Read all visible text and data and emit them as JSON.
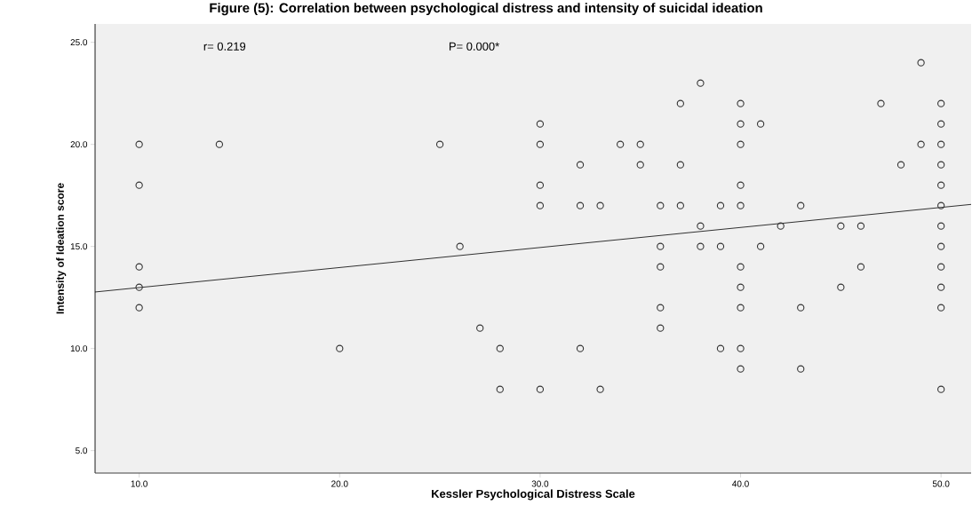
{
  "chart_data": {
    "type": "scatter",
    "title": "Figure (5): Correlation between psychological distress and intensity of suicidal ideation",
    "xlabel": "Kessler Psychological Distress Scale",
    "ylabel": "Intensity of Ideation score",
    "annotations": [
      "r= 0.219",
      "P= 0.000*"
    ],
    "xlim": [
      7.8,
      51.5
    ],
    "ylim": [
      3.9,
      25.9
    ],
    "xticks": [
      {
        "value": 10,
        "label": "10.0"
      },
      {
        "value": 20,
        "label": "20.0"
      },
      {
        "value": 30,
        "label": "30.0"
      },
      {
        "value": 40,
        "label": "40.0"
      },
      {
        "value": 50,
        "label": "50.0"
      }
    ],
    "yticks": [
      {
        "value": 5,
        "label": "5.0"
      },
      {
        "value": 10,
        "label": "10.0"
      },
      {
        "value": 15,
        "label": "15.0"
      },
      {
        "value": 20,
        "label": "20.0"
      },
      {
        "value": 25,
        "label": "25.0"
      }
    ],
    "grid": false,
    "marker": "circle",
    "series": [
      {
        "color": "#333333",
        "x": [
          10,
          10,
          10,
          10,
          10,
          14,
          20,
          25,
          26,
          27,
          28,
          28,
          30,
          30,
          30,
          30,
          30,
          32,
          32,
          32,
          33,
          33,
          34,
          35,
          35,
          36,
          36,
          36,
          36,
          36,
          37,
          37,
          37,
          38,
          38,
          38,
          39,
          39,
          39,
          40,
          40,
          40,
          40,
          40,
          40,
          40,
          40,
          40,
          40,
          41,
          41,
          42,
          43,
          43,
          43,
          45,
          45,
          46,
          46,
          47,
          48,
          49,
          49,
          50,
          50,
          50,
          50,
          50,
          50,
          50,
          50,
          50,
          50,
          50,
          50
        ],
        "values": [
          20,
          18,
          14,
          13,
          12,
          20,
          10,
          20,
          15,
          11,
          10,
          8,
          21,
          20,
          18,
          17,
          8,
          19,
          17,
          10,
          17,
          8,
          20,
          20,
          19,
          17,
          15,
          14,
          12,
          11,
          22,
          19,
          17,
          23,
          16,
          15,
          17,
          15,
          10,
          22,
          21,
          20,
          18,
          17,
          14,
          13,
          12,
          10,
          9,
          21,
          15,
          16,
          17,
          12,
          9,
          16,
          13,
          16,
          14,
          22,
          19,
          24,
          20,
          22,
          21,
          20,
          19,
          18,
          17,
          16,
          15,
          14,
          13,
          12,
          8
        ]
      },
      {
        "type": "line",
        "color": "#000000",
        "marker": "none",
        "x": [
          7.8,
          51.5
        ],
        "values": [
          12.77,
          17.06
        ]
      }
    ]
  }
}
